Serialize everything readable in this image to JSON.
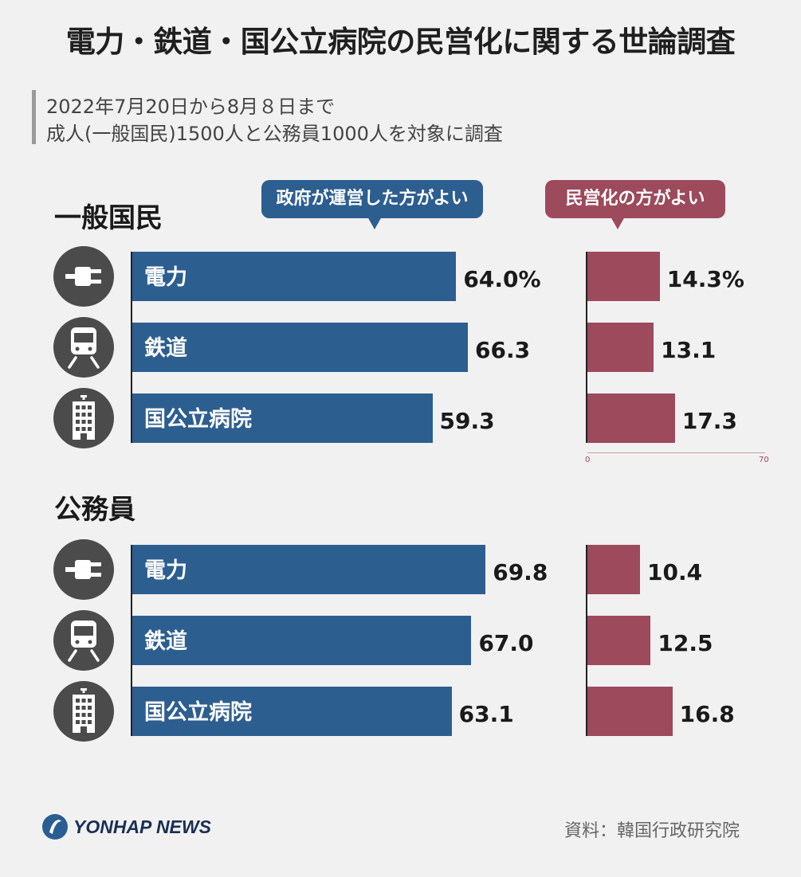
{
  "title": "電力・鉄道・国公立病院の民営化に関する世論調査",
  "notes": [
    "2022年7月20日から8月８日まで",
    "成人(一般国民)1500人と公務員1000人を対象に調査"
  ],
  "legend": {
    "gov": "政府が運営した方がよい",
    "private": "民営化の方がよい"
  },
  "colors": {
    "gov": "#2d5e90",
    "private": "#9c4a5c",
    "icon_bg": "#4b4b4b"
  },
  "chart_data": [
    {
      "type": "bar",
      "title": "一般国民",
      "categories": [
        "電力",
        "鉄道",
        "国公立病院"
      ],
      "icons": [
        "plug-icon",
        "train-icon",
        "hospital-icon"
      ],
      "series": [
        {
          "name": "政府が運営した方がよい",
          "values": [
            64.0,
            66.3,
            59.3
          ],
          "labels": [
            "64.0%",
            "66.3",
            "59.3"
          ]
        },
        {
          "name": "民営化の方がよい",
          "values": [
            14.3,
            13.1,
            17.3
          ],
          "labels": [
            "14.3%",
            "13.1",
            "17.3"
          ]
        }
      ],
      "private_axis": {
        "min_label": "0",
        "max_label": "70",
        "range": [
          0,
          70
        ]
      }
    },
    {
      "type": "bar",
      "title": "公務員",
      "categories": [
        "電力",
        "鉄道",
        "国公立病院"
      ],
      "icons": [
        "plug-icon",
        "train-icon",
        "hospital-icon"
      ],
      "series": [
        {
          "name": "政府が運営した方がよい",
          "values": [
            69.8,
            67.0,
            63.1
          ],
          "labels": [
            "69.8",
            "67.0",
            "63.1"
          ]
        },
        {
          "name": "民営化の方がよい",
          "values": [
            10.4,
            12.5,
            16.8
          ],
          "labels": [
            "10.4",
            "12.5",
            "16.8"
          ]
        }
      ]
    }
  ],
  "source": "資料：韓国行政研究院",
  "logo": "YONHAP NEWS"
}
